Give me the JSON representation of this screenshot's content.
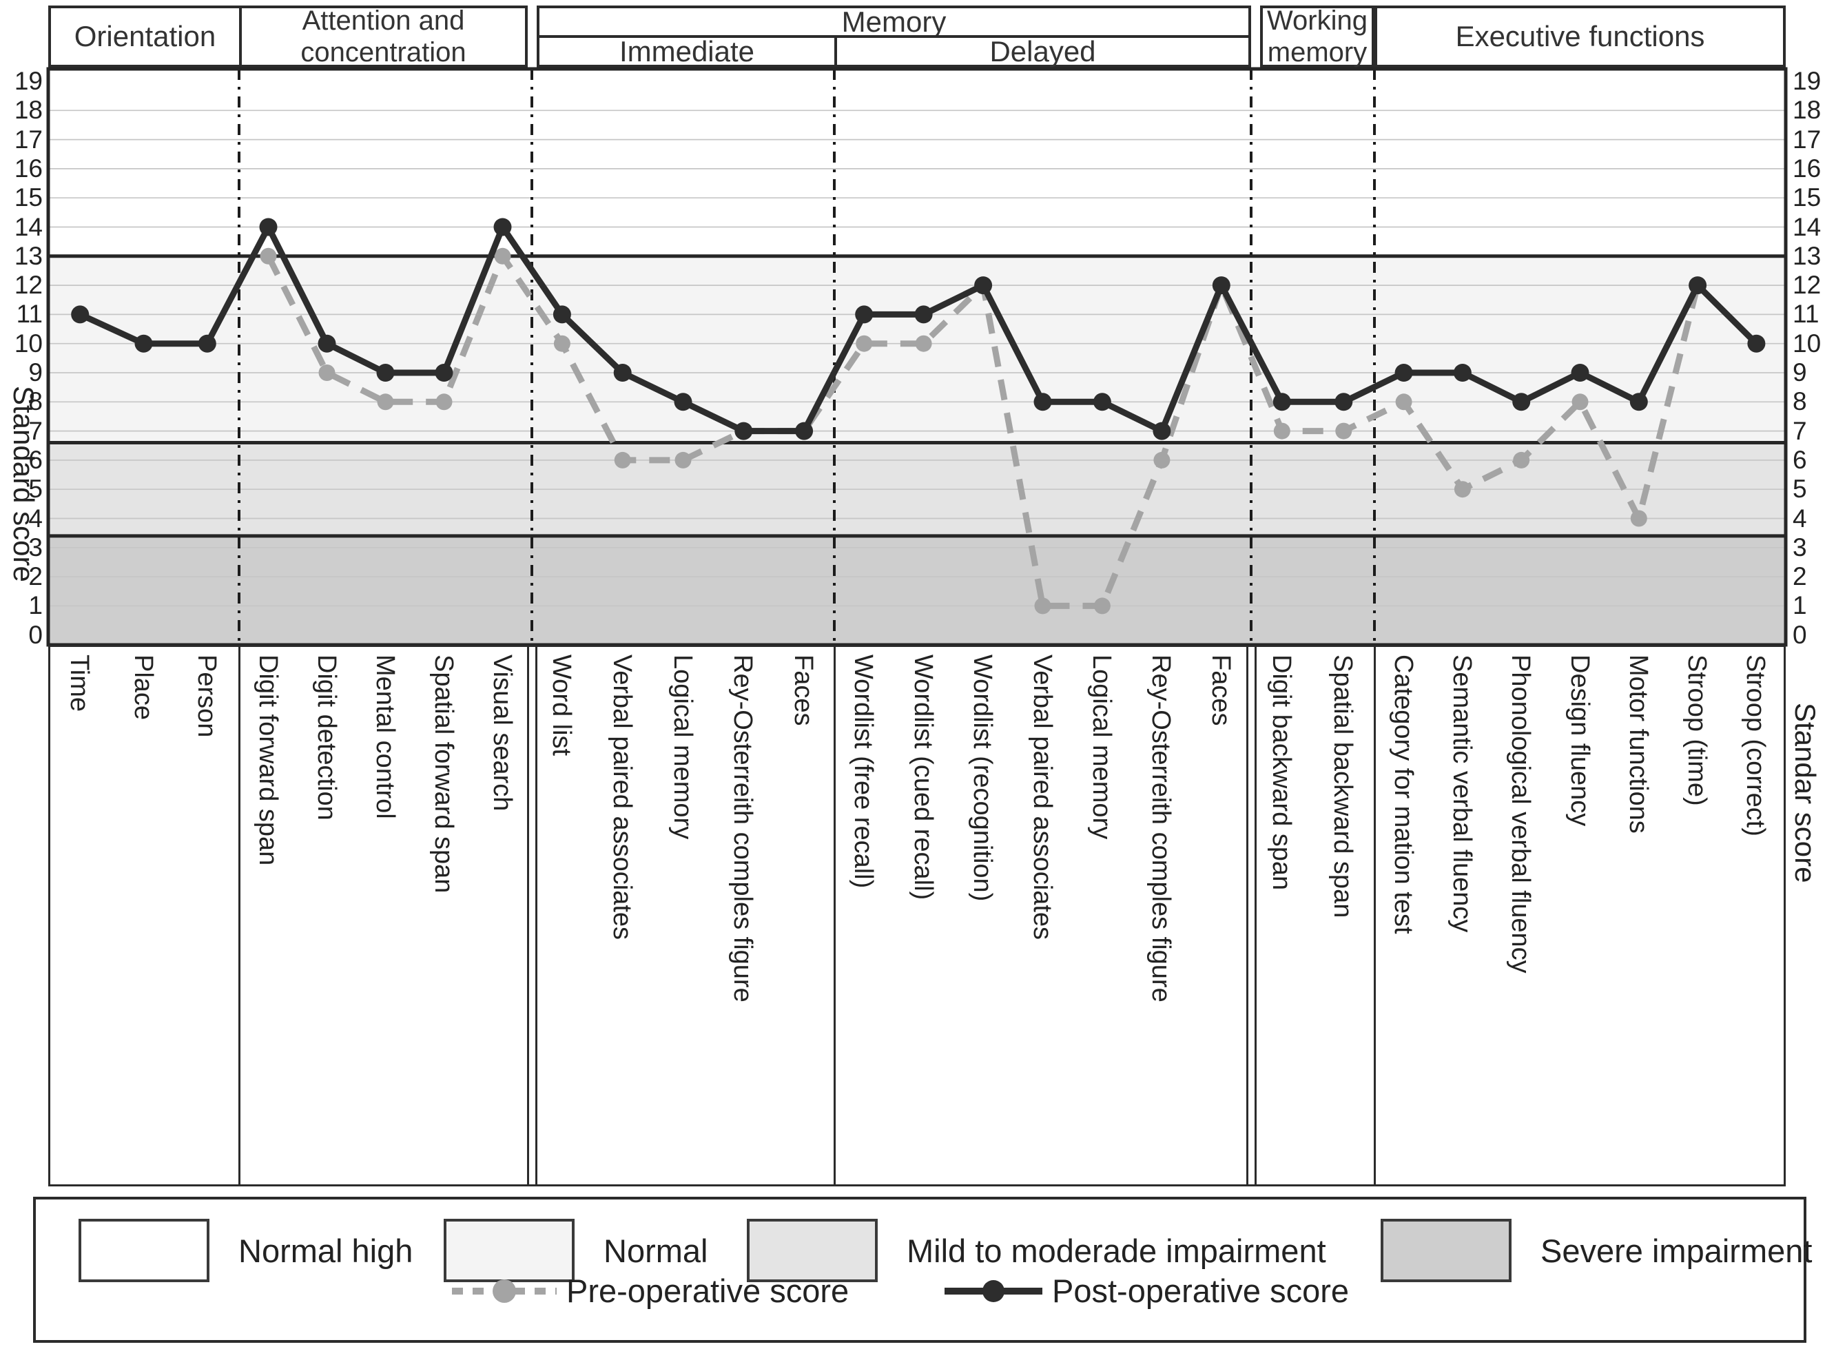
{
  "figure": {
    "axis_left_title": "Standard score",
    "axis_right_title": "Standar score",
    "ticks": [
      0,
      1,
      2,
      3,
      4,
      5,
      6,
      7,
      8,
      9,
      10,
      11,
      12,
      13,
      14,
      15,
      16,
      17,
      18,
      19
    ]
  },
  "sections": [
    {
      "label": "Orientation"
    },
    {
      "label": "Attention and concentration"
    },
    {
      "label": "Memory",
      "children": [
        {
          "label": "Immediate"
        },
        {
          "label": "Delayed"
        }
      ]
    },
    {
      "label": "Working memory"
    },
    {
      "label": "Executive functions"
    }
  ],
  "legend": {
    "bands": [
      {
        "label": "Normal high",
        "color": "#ffffff"
      },
      {
        "label": "Normal",
        "color": "#f4f4f4"
      },
      {
        "label": "Mild to moderade impairment",
        "color": "#e4e4e4"
      },
      {
        "label": "Severe impairment",
        "color": "#cecece"
      }
    ],
    "series": [
      {
        "label": "Pre-operative score"
      },
      {
        "label": "Post-operative score"
      }
    ]
  },
  "chart_data": {
    "type": "line",
    "ylabel": "Standard score",
    "ylim": [
      0,
      19
    ],
    "grid": true,
    "threshold_lines": [
      13,
      6.6,
      3.4
    ],
    "bands": [
      {
        "label": "Normal high",
        "from": 13,
        "to": 19.5,
        "color": "#ffffff"
      },
      {
        "label": "Normal",
        "from": 6.6,
        "to": 13,
        "color": "#f4f4f4"
      },
      {
        "label": "Mild to moderade impairment",
        "from": 3.4,
        "to": 6.6,
        "color": "#e4e4e4"
      },
      {
        "label": "Severe impairment",
        "from": -0.4,
        "to": 3.4,
        "color": "#cecece"
      }
    ],
    "groups": [
      {
        "section": "Orientation",
        "categories": [
          "Time",
          "Place",
          "Person"
        ]
      },
      {
        "section": "Attention and concentration",
        "categories": [
          "Digit forward span",
          "Digit detection",
          "Mental control",
          "Spatial forward span",
          "Visual search"
        ]
      },
      {
        "section": "Memory / Immediate",
        "categories": [
          "Word list",
          "Verbal paired associates",
          "Logical memory",
          "Rey-Osterreith comples figure",
          "Faces"
        ]
      },
      {
        "section": "Memory / Delayed",
        "categories": [
          "Wordlist (free recall)",
          "Wordlist (cued recall)",
          "Wordlist (recognition)",
          "Verbal paired associates",
          "Logical memory",
          "Rey-Osterreith comples figure",
          "Faces"
        ]
      },
      {
        "section": "Working memory",
        "categories": [
          "Digit backward span",
          "Spatial backward span"
        ]
      },
      {
        "section": "Executive functions",
        "categories": [
          "Category for mation test",
          "Semantic verbal fluency",
          "Phonological verbal fluency",
          "Design fluency",
          "Motor functions",
          "Stroop (time)",
          "Stroop (correct)"
        ]
      }
    ],
    "series": [
      {
        "name": "Pre-operative score",
        "style": "dashed",
        "color": "#a4a4a4",
        "values": [
          null,
          null,
          null,
          13,
          9,
          8,
          8,
          13,
          10,
          6,
          6,
          7,
          7,
          10,
          10,
          12,
          1,
          1,
          6,
          12,
          7,
          7,
          8,
          5,
          6,
          8,
          4,
          12,
          null
        ]
      },
      {
        "name": "Post-operative score",
        "style": "solid",
        "color": "#2d2d2d",
        "values": [
          11,
          10,
          10,
          14,
          10,
          9,
          9,
          14,
          11,
          9,
          8,
          7,
          7,
          11,
          11,
          12,
          8,
          8,
          7,
          12,
          8,
          8,
          9,
          9,
          8,
          9,
          8,
          12,
          10
        ]
      }
    ]
  }
}
